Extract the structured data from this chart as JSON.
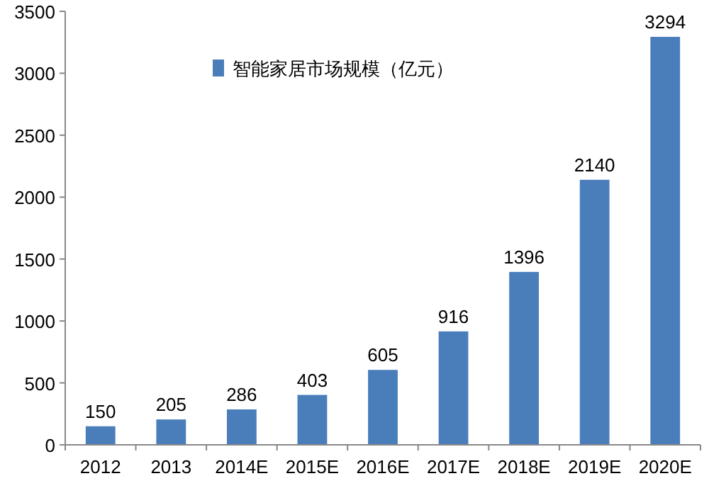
{
  "chart_data": {
    "type": "bar",
    "categories": [
      "2012",
      "2013",
      "2014E",
      "2015E",
      "2016E",
      "2017E",
      "2018E",
      "2019E",
      "2020E"
    ],
    "series": [
      {
        "name": "智能家居市场规模（亿元）",
        "color": "#4a7ebb",
        "values": [
          150,
          205,
          286,
          403,
          605,
          916,
          1396,
          2140,
          3294
        ]
      }
    ],
    "ylim": [
      0,
      3500
    ],
    "yticks": [
      0,
      500,
      1000,
      1500,
      2000,
      2500,
      3000,
      3500
    ],
    "data_labels": true,
    "legend": "top left"
  }
}
